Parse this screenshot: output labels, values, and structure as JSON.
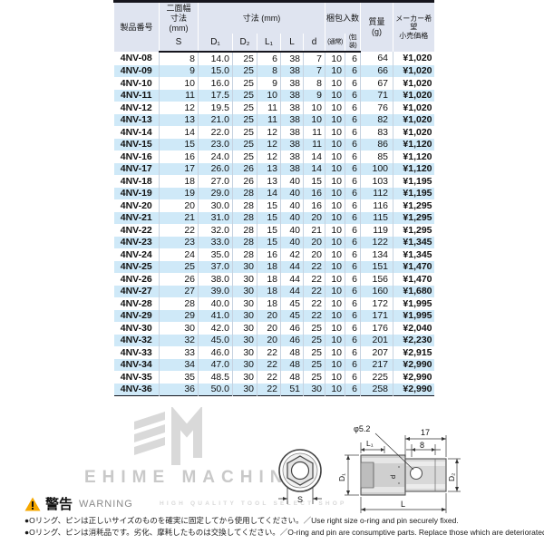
{
  "table": {
    "header": {
      "product": "製品番号",
      "flats": "二面幅\n寸法\n(mm)",
      "dims": "寸法 (mm)",
      "packing": "梱包入数",
      "mass": "質量\n(g)",
      "price": "メーカー希望\n小売価格",
      "sub": [
        "S",
        "D₁",
        "D₂",
        "L₁",
        "L",
        "d",
        "(通常)",
        "(包装)"
      ]
    },
    "rows": [
      [
        "4NV-08",
        "8",
        "14.0",
        "25",
        "6",
        "38",
        "7",
        "10",
        "6",
        "64",
        "¥1,020"
      ],
      [
        "4NV-09",
        "9",
        "15.0",
        "25",
        "8",
        "38",
        "7",
        "10",
        "6",
        "66",
        "¥1,020"
      ],
      [
        "4NV-10",
        "10",
        "16.0",
        "25",
        "9",
        "38",
        "8",
        "10",
        "6",
        "67",
        "¥1,020"
      ],
      [
        "4NV-11",
        "11",
        "17.5",
        "25",
        "10",
        "38",
        "9",
        "10",
        "6",
        "71",
        "¥1,020"
      ],
      [
        "4NV-12",
        "12",
        "19.5",
        "25",
        "11",
        "38",
        "10",
        "10",
        "6",
        "76",
        "¥1,020"
      ],
      [
        "4NV-13",
        "13",
        "21.0",
        "25",
        "11",
        "38",
        "10",
        "10",
        "6",
        "82",
        "¥1,020"
      ],
      [
        "4NV-14",
        "14",
        "22.0",
        "25",
        "12",
        "38",
        "11",
        "10",
        "6",
        "83",
        "¥1,020"
      ],
      [
        "4NV-15",
        "15",
        "23.0",
        "25",
        "12",
        "38",
        "11",
        "10",
        "6",
        "86",
        "¥1,120"
      ],
      [
        "4NV-16",
        "16",
        "24.0",
        "25",
        "12",
        "38",
        "14",
        "10",
        "6",
        "85",
        "¥1,120"
      ],
      [
        "4NV-17",
        "17",
        "26.0",
        "26",
        "13",
        "38",
        "14",
        "10",
        "6",
        "100",
        "¥1,120"
      ],
      [
        "4NV-18",
        "18",
        "27.0",
        "26",
        "13",
        "40",
        "15",
        "10",
        "6",
        "103",
        "¥1,195"
      ],
      [
        "4NV-19",
        "19",
        "29.0",
        "28",
        "14",
        "40",
        "16",
        "10",
        "6",
        "112",
        "¥1,195"
      ],
      [
        "4NV-20",
        "20",
        "30.0",
        "28",
        "15",
        "40",
        "16",
        "10",
        "6",
        "116",
        "¥1,295"
      ],
      [
        "4NV-21",
        "21",
        "31.0",
        "28",
        "15",
        "40",
        "20",
        "10",
        "6",
        "115",
        "¥1,295"
      ],
      [
        "4NV-22",
        "22",
        "32.0",
        "28",
        "15",
        "40",
        "21",
        "10",
        "6",
        "119",
        "¥1,295"
      ],
      [
        "4NV-23",
        "23",
        "33.0",
        "28",
        "15",
        "40",
        "20",
        "10",
        "6",
        "122",
        "¥1,345"
      ],
      [
        "4NV-24",
        "24",
        "35.0",
        "28",
        "16",
        "42",
        "20",
        "10",
        "6",
        "134",
        "¥1,345"
      ],
      [
        "4NV-25",
        "25",
        "37.0",
        "30",
        "18",
        "44",
        "22",
        "10",
        "6",
        "151",
        "¥1,470"
      ],
      [
        "4NV-26",
        "26",
        "38.0",
        "30",
        "18",
        "44",
        "22",
        "10",
        "6",
        "156",
        "¥1,470"
      ],
      [
        "4NV-27",
        "27",
        "39.0",
        "30",
        "18",
        "44",
        "22",
        "10",
        "6",
        "160",
        "¥1,680"
      ],
      [
        "4NV-28",
        "28",
        "40.0",
        "30",
        "18",
        "45",
        "22",
        "10",
        "6",
        "172",
        "¥1,995"
      ],
      [
        "4NV-29",
        "29",
        "41.0",
        "30",
        "20",
        "45",
        "22",
        "10",
        "6",
        "171",
        "¥1,995"
      ],
      [
        "4NV-30",
        "30",
        "42.0",
        "30",
        "20",
        "46",
        "25",
        "10",
        "6",
        "176",
        "¥2,040"
      ],
      [
        "4NV-32",
        "32",
        "45.0",
        "30",
        "20",
        "46",
        "25",
        "10",
        "6",
        "201",
        "¥2,230"
      ],
      [
        "4NV-33",
        "33",
        "46.0",
        "30",
        "22",
        "48",
        "25",
        "10",
        "6",
        "207",
        "¥2,915"
      ],
      [
        "4NV-34",
        "34",
        "47.0",
        "30",
        "22",
        "48",
        "25",
        "10",
        "6",
        "217",
        "¥2,990"
      ],
      [
        "4NV-35",
        "35",
        "48.5",
        "30",
        "22",
        "48",
        "25",
        "10",
        "6",
        "225",
        "¥2,990"
      ],
      [
        "4NV-36",
        "36",
        "50.0",
        "30",
        "22",
        "51",
        "30",
        "10",
        "6",
        "258",
        "¥2,990"
      ]
    ]
  },
  "diagram": {
    "front_s": "S",
    "pin_dia": "φ5.2",
    "dim_17": "17",
    "dim_8": "8",
    "dim_l1": "L₁",
    "dim_d1": "D₁",
    "dim_d2": "D₂",
    "dim_d": "d",
    "dim_l": "L"
  },
  "watermark": {
    "name": "EHIME MACHINE",
    "tagline": "HIGH QUALITY TOOL SELECT SHOP"
  },
  "warning": {
    "title_ja": "警告",
    "title_en": "WARNING",
    "items": [
      "●Oリング、ピンは正しいサイズのものを確実に固定してから使用してください。／Use right size o-ring and pin securely fixed.",
      "●Oリング、ピンは消耗品です。劣化、摩耗したものは交換してください。／O-ring and pin are consumptive parts. Replace those which are deteriorated or worn."
    ]
  },
  "colors": {
    "header_bg": "#dfe4f0",
    "row_alt": "#cfe9f8",
    "border_dark": "#15151d",
    "warning_yellow": "#f6a800",
    "watermark_gray": "#d9d9d9"
  }
}
